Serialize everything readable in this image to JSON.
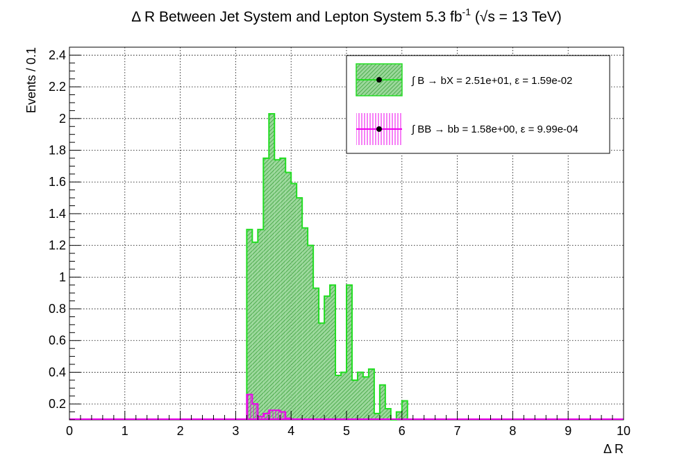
{
  "chart_data": {
    "type": "histogram",
    "title": "Δ R Between Jet System and Lepton System 5.3 fb",
    "title_sup": "-1",
    "title_tail": " (√s = 13 TeV)",
    "xlabel": "Δ R",
    "ylabel": "Events / 0.1",
    "xlim": [
      0,
      10
    ],
    "ylim": [
      0.1,
      2.45
    ],
    "grid": true,
    "legend_position": "top-right",
    "x_ticks": [
      "0",
      "1",
      "2",
      "3",
      "4",
      "5",
      "6",
      "7",
      "8",
      "9",
      "10"
    ],
    "y_ticks": [
      "0.2",
      "0.4",
      "0.6",
      "0.8",
      "1",
      "1.2",
      "1.4",
      "1.6",
      "1.8",
      "2",
      "2.2",
      "2.4"
    ],
    "bin_width": 0.1,
    "series": [
      {
        "name": "∫ B → bX = 2.51e+01, ε = 1.59e-02",
        "color": "#22dd22",
        "fill": "#33aa33",
        "x": [
          3.2,
          3.3,
          3.4,
          3.5,
          3.6,
          3.7,
          3.8,
          3.9,
          4.0,
          4.1,
          4.2,
          4.3,
          4.4,
          4.5,
          4.6,
          4.7,
          4.8,
          4.9,
          5.0,
          5.1,
          5.2,
          5.3,
          5.4,
          5.5,
          5.6,
          5.7,
          5.8,
          5.9,
          6.0
        ],
        "values": [
          1.3,
          1.22,
          1.3,
          1.75,
          2.03,
          1.74,
          1.75,
          1.66,
          1.59,
          1.5,
          1.31,
          1.2,
          0.93,
          0.71,
          0.88,
          0.95,
          0.38,
          0.4,
          0.95,
          0.35,
          0.4,
          0.37,
          0.42,
          0.14,
          0.32,
          0.17,
          0.05,
          0.15,
          0.22
        ]
      },
      {
        "name": "∫ BB → bb = 1.58e+00, ε = 9.99e-04",
        "color": "#ee00ee",
        "fill": "#ee00ee",
        "x": [
          3.2,
          3.3,
          3.4,
          3.5,
          3.6,
          3.7,
          3.8,
          3.9
        ],
        "values": [
          0.26,
          0.2,
          0.12,
          0.14,
          0.16,
          0.16,
          0.15,
          0.11
        ]
      }
    ]
  }
}
